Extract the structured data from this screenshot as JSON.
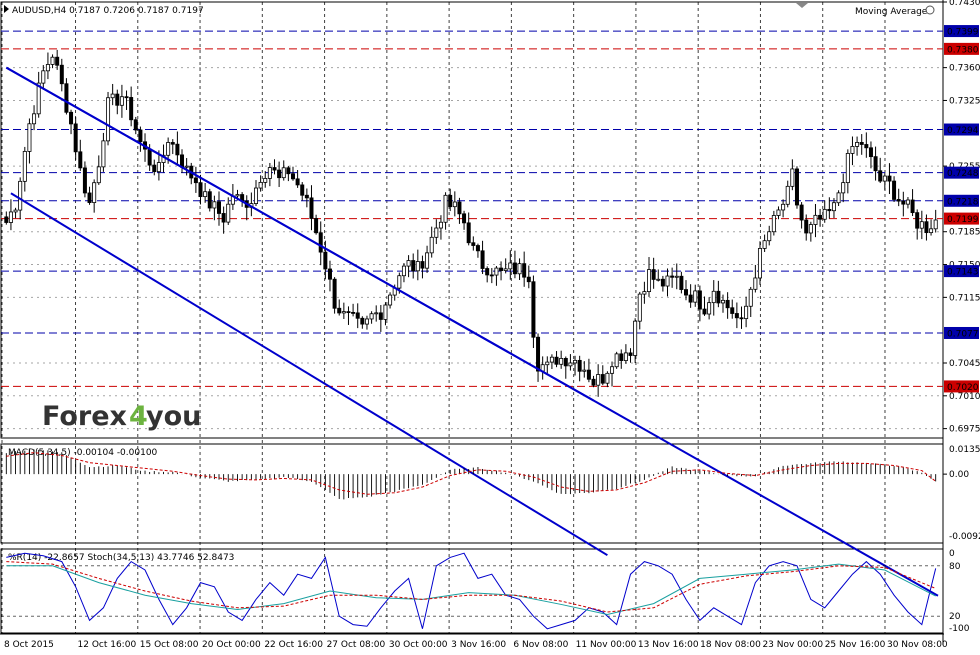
{
  "colors": {
    "background": "#ffffff",
    "candle": "#000000",
    "grid": "#000000",
    "channel": "#0000cc",
    "level_blue": "#0000aa",
    "level_red": "#cc0000",
    "macd_signal": "#cc0000",
    "stoch_k": "#0000cc",
    "stoch_d": "#cc0000",
    "rsi": "#19a0a0",
    "logo_dark": "#333333",
    "logo_green": "#6cb33f"
  },
  "header": {
    "symbol_line": "AUDUSD,H4  0.7187 0.7206 0.7187 0.7197",
    "indicator_label": "Moving Average"
  },
  "logo": {
    "text_a": "Forex",
    "digit": "4",
    "text_b": "you"
  },
  "chart_data": [
    {
      "type": "candlestick",
      "title": "AUDUSD,H4",
      "ylim": [
        0.6965,
        0.743
      ],
      "y_ticks": [
        "0.7430",
        "0.7360",
        "0.7325",
        "0.7255",
        "0.7185",
        "0.7150",
        "0.7115",
        "0.7045",
        "0.7010",
        "0.6975"
      ],
      "x_labels": [
        "8 Oct 2015",
        "12 Oct 16:00",
        "15 Oct 08:00",
        "20 Oct 00:00",
        "22 Oct 16:00",
        "27 Oct 08:00",
        "30 Oct 00:00",
        "3 Nov 16:00",
        "6 Nov 08:00",
        "11 Nov 00:00",
        "13 Nov 16:00",
        "18 Nov 08:00",
        "23 Nov 00:00",
        "25 Nov 16:00",
        "30 Nov 08:00"
      ],
      "horizontal_levels": [
        {
          "value": 0.7399,
          "label": "0.7399",
          "style": "blue"
        },
        {
          "value": 0.738,
          "label": "0.7380",
          "style": "red"
        },
        {
          "value": 0.7294,
          "label": "0.7294",
          "style": "blue"
        },
        {
          "value": 0.7248,
          "label": "0.7248",
          "style": "blue"
        },
        {
          "value": 0.7218,
          "label": "0.7218",
          "style": "blue"
        },
        {
          "value": 0.7199,
          "label": "0.7199",
          "style": "red"
        },
        {
          "value": 0.7143,
          "label": "0.7143",
          "style": "blue"
        },
        {
          "value": 0.7077,
          "label": "0.7077",
          "style": "blue"
        },
        {
          "value": 0.702,
          "label": "0.7020",
          "style": "red"
        }
      ],
      "channel_lines": [
        {
          "x": [
            0,
            127
          ],
          "y": [
            0.736,
            0.7005
          ]
        },
        {
          "x": [
            1,
            130
          ],
          "y": [
            0.7226,
            0.684
          ]
        }
      ],
      "close_path": [
        [
          0,
          0.7195
        ],
        [
          2,
          0.7215
        ],
        [
          5,
          0.73
        ],
        [
          8,
          0.7355
        ],
        [
          10,
          0.7375
        ],
        [
          12,
          0.734
        ],
        [
          14,
          0.73
        ],
        [
          16,
          0.725
        ],
        [
          18,
          0.7215
        ],
        [
          20,
          0.726
        ],
        [
          22,
          0.732
        ],
        [
          25,
          0.733
        ],
        [
          27,
          0.731
        ],
        [
          29,
          0.728
        ],
        [
          31,
          0.726
        ],
        [
          33,
          0.725
        ],
        [
          35,
          0.7285
        ],
        [
          37,
          0.727
        ],
        [
          39,
          0.725
        ],
        [
          41,
          0.724
        ],
        [
          43,
          0.722
        ],
        [
          45,
          0.721
        ],
        [
          47,
          0.72
        ],
        [
          49,
          0.7225
        ],
        [
          51,
          0.7215
        ],
        [
          53,
          0.722
        ],
        [
          55,
          0.7245
        ],
        [
          57,
          0.7255
        ],
        [
          59,
          0.724
        ],
        [
          61,
          0.725
        ],
        [
          63,
          0.7235
        ],
        [
          65,
          0.7215
        ],
        [
          67,
          0.7185
        ],
        [
          69,
          0.715
        ],
        [
          71,
          0.711
        ],
        [
          73,
          0.7095
        ],
        [
          75,
          0.709
        ],
        [
          77,
          0.708
        ],
        [
          79,
          0.7095
        ],
        [
          81,
          0.71
        ],
        [
          83,
          0.712
        ],
        [
          85,
          0.714
        ],
        [
          87,
          0.715
        ],
        [
          89,
          0.7145
        ],
        [
          91,
          0.7165
        ],
        [
          93,
          0.719
        ],
        [
          95,
          0.7215
        ],
        [
          97,
          0.721
        ],
        [
          99,
          0.7195
        ],
        [
          101,
          0.7165
        ],
        [
          103,
          0.715
        ],
        [
          105,
          0.7145
        ],
        [
          107,
          0.714
        ],
        [
          109,
          0.7145
        ],
        [
          111,
          0.7145
        ],
        [
          113,
          0.714
        ],
        [
          114,
          0.708
        ],
        [
          115,
          0.7045
        ],
        [
          117,
          0.704
        ],
        [
          119,
          0.705
        ],
        [
          121,
          0.705
        ],
        [
          123,
          0.7048
        ],
        [
          125,
          0.704
        ],
        [
          127,
          0.7025
        ],
        [
          129,
          0.703
        ],
        [
          131,
          0.705
        ],
        [
          133,
          0.7055
        ],
        [
          135,
          0.706
        ],
        [
          137,
          0.712
        ],
        [
          139,
          0.714
        ],
        [
          141,
          0.713
        ],
        [
          143,
          0.713
        ],
        [
          145,
          0.7135
        ],
        [
          147,
          0.712
        ],
        [
          149,
          0.7115
        ],
        [
          151,
          0.7105
        ],
        [
          153,
          0.7125
        ],
        [
          155,
          0.711
        ],
        [
          157,
          0.71
        ],
        [
          159,
          0.7085
        ],
        [
          161,
          0.7125
        ],
        [
          163,
          0.716
        ],
        [
          165,
          0.7185
        ],
        [
          167,
          0.7205
        ],
        [
          169,
          0.7225
        ],
        [
          170,
          0.7245
        ],
        [
          171,
          0.7215
        ],
        [
          173,
          0.718
        ],
        [
          175,
          0.7195
        ],
        [
          177,
          0.72
        ],
        [
          179,
          0.721
        ],
        [
          181,
          0.7245
        ],
        [
          183,
          0.7275
        ],
        [
          185,
          0.728
        ],
        [
          187,
          0.726
        ],
        [
          189,
          0.724
        ],
        [
          191,
          0.7235
        ],
        [
          193,
          0.722
        ],
        [
          195,
          0.721
        ],
        [
          197,
          0.7195
        ],
        [
          199,
          0.719
        ],
        [
          201,
          0.7197
        ]
      ]
    },
    {
      "type": "bar",
      "title": "MACD(5,34,5) -0.00104 -0.00100",
      "ylim": [
        -0.0096,
        0.0042
      ],
      "y_ticks": [
        "0.01359",
        "0.00",
        "-0.00925"
      ],
      "macd_path": [
        [
          0,
          0.003
        ],
        [
          6,
          0.0035
        ],
        [
          12,
          0.003
        ],
        [
          18,
          0.001
        ],
        [
          24,
          0.0012
        ],
        [
          30,
          0.0004
        ],
        [
          36,
          0.0003
        ],
        [
          42,
          -0.0005
        ],
        [
          48,
          -0.001
        ],
        [
          54,
          -0.0008
        ],
        [
          60,
          -0.0004
        ],
        [
          66,
          -0.001
        ],
        [
          72,
          -0.0035
        ],
        [
          78,
          -0.0032
        ],
        [
          84,
          -0.0024
        ],
        [
          90,
          -0.0015
        ],
        [
          96,
          0.0006
        ],
        [
          102,
          0.0009
        ],
        [
          108,
          0.0002
        ],
        [
          114,
          -0.001
        ],
        [
          120,
          -0.0028
        ],
        [
          126,
          -0.0026
        ],
        [
          132,
          -0.002
        ],
        [
          138,
          -0.0008
        ],
        [
          144,
          0.001
        ],
        [
          150,
          0.0005
        ],
        [
          156,
          -0.0002
        ],
        [
          162,
          -0.0003
        ],
        [
          168,
          0.0012
        ],
        [
          174,
          0.0015
        ],
        [
          180,
          0.0018
        ],
        [
          186,
          0.0015
        ],
        [
          192,
          0.0012
        ],
        [
          198,
          0.0002
        ],
        [
          201,
          -0.001
        ]
      ],
      "signal_path": [
        [
          0,
          0.0025
        ],
        [
          6,
          0.003
        ],
        [
          12,
          0.0026
        ],
        [
          18,
          0.0016
        ],
        [
          24,
          0.0012
        ],
        [
          30,
          0.0008
        ],
        [
          36,
          0.0004
        ],
        [
          42,
          -0.0002
        ],
        [
          48,
          -0.0007
        ],
        [
          54,
          -0.0008
        ],
        [
          60,
          -0.0006
        ],
        [
          66,
          -0.0008
        ],
        [
          72,
          -0.0022
        ],
        [
          78,
          -0.0028
        ],
        [
          84,
          -0.0026
        ],
        [
          90,
          -0.0018
        ],
        [
          96,
          -0.0002
        ],
        [
          102,
          0.0006
        ],
        [
          108,
          0.0004
        ],
        [
          114,
          -0.0004
        ],
        [
          120,
          -0.0018
        ],
        [
          126,
          -0.0024
        ],
        [
          132,
          -0.0022
        ],
        [
          138,
          -0.0012
        ],
        [
          144,
          0.0004
        ],
        [
          150,
          0.0006
        ],
        [
          156,
          0.0001
        ],
        [
          162,
          -0.0002
        ],
        [
          168,
          0.0006
        ],
        [
          174,
          0.0012
        ],
        [
          180,
          0.0015
        ],
        [
          186,
          0.0015
        ],
        [
          192,
          0.0012
        ],
        [
          198,
          0.0005
        ],
        [
          201,
          -0.001
        ]
      ]
    },
    {
      "type": "line",
      "title": "%R(14) -22.8657  Stoch(34,5,13) 43.7746 52.8473",
      "ylim": [
        -100,
        0
      ],
      "y_ticks": [
        "0",
        "-100"
      ],
      "right_tick_labels": [
        "80",
        "20"
      ],
      "fast_path": [
        [
          0,
          -10
        ],
        [
          4,
          -5
        ],
        [
          8,
          -8
        ],
        [
          12,
          -15
        ],
        [
          15,
          -45
        ],
        [
          18,
          -85
        ],
        [
          21,
          -70
        ],
        [
          24,
          -35
        ],
        [
          27,
          -15
        ],
        [
          30,
          -25
        ],
        [
          33,
          -60
        ],
        [
          36,
          -90
        ],
        [
          39,
          -70
        ],
        [
          42,
          -40
        ],
        [
          45,
          -45
        ],
        [
          48,
          -75
        ],
        [
          51,
          -85
        ],
        [
          54,
          -60
        ],
        [
          57,
          -40
        ],
        [
          60,
          -55
        ],
        [
          63,
          -30
        ],
        [
          66,
          -35
        ],
        [
          69,
          -10
        ],
        [
          72,
          -80
        ],
        [
          75,
          -90
        ],
        [
          78,
          -92
        ],
        [
          81,
          -70
        ],
        [
          84,
          -50
        ],
        [
          87,
          -35
        ],
        [
          90,
          -95
        ],
        [
          93,
          -20
        ],
        [
          96,
          -10
        ],
        [
          99,
          -5
        ],
        [
          102,
          -35
        ],
        [
          105,
          -30
        ],
        [
          108,
          -55
        ],
        [
          111,
          -60
        ],
        [
          114,
          -80
        ],
        [
          117,
          -95
        ],
        [
          120,
          -90
        ],
        [
          123,
          -85
        ],
        [
          126,
          -70
        ],
        [
          129,
          -75
        ],
        [
          132,
          -90
        ],
        [
          135,
          -30
        ],
        [
          138,
          -15
        ],
        [
          141,
          -20
        ],
        [
          144,
          -30
        ],
        [
          147,
          -60
        ],
        [
          150,
          -85
        ],
        [
          153,
          -70
        ],
        [
          156,
          -80
        ],
        [
          159,
          -90
        ],
        [
          162,
          -40
        ],
        [
          165,
          -20
        ],
        [
          168,
          -15
        ],
        [
          171,
          -20
        ],
        [
          174,
          -60
        ],
        [
          177,
          -70
        ],
        [
          180,
          -50
        ],
        [
          183,
          -30
        ],
        [
          186,
          -15
        ],
        [
          189,
          -30
        ],
        [
          192,
          -55
        ],
        [
          195,
          -75
        ],
        [
          198,
          -90
        ],
        [
          201,
          -23
        ]
      ],
      "stoch_main_path": [
        [
          0,
          -20
        ],
        [
          10,
          -20
        ],
        [
          20,
          -40
        ],
        [
          30,
          -55
        ],
        [
          40,
          -65
        ],
        [
          50,
          -72
        ],
        [
          60,
          -65
        ],
        [
          70,
          -50
        ],
        [
          80,
          -58
        ],
        [
          90,
          -60
        ],
        [
          100,
          -52
        ],
        [
          110,
          -55
        ],
        [
          120,
          -66
        ],
        [
          130,
          -78
        ],
        [
          140,
          -65
        ],
        [
          150,
          -35
        ],
        [
          160,
          -30
        ],
        [
          170,
          -25
        ],
        [
          180,
          -18
        ],
        [
          190,
          -25
        ],
        [
          201,
          -56
        ]
      ],
      "stoch_signal_path": [
        [
          0,
          -15
        ],
        [
          10,
          -18
        ],
        [
          20,
          -35
        ],
        [
          30,
          -50
        ],
        [
          40,
          -62
        ],
        [
          50,
          -70
        ],
        [
          60,
          -68
        ],
        [
          70,
          -55
        ],
        [
          80,
          -55
        ],
        [
          90,
          -60
        ],
        [
          100,
          -55
        ],
        [
          110,
          -55
        ],
        [
          120,
          -62
        ],
        [
          130,
          -75
        ],
        [
          140,
          -70
        ],
        [
          150,
          -42
        ],
        [
          160,
          -32
        ],
        [
          170,
          -27
        ],
        [
          180,
          -20
        ],
        [
          190,
          -22
        ],
        [
          201,
          -47
        ]
      ]
    }
  ]
}
